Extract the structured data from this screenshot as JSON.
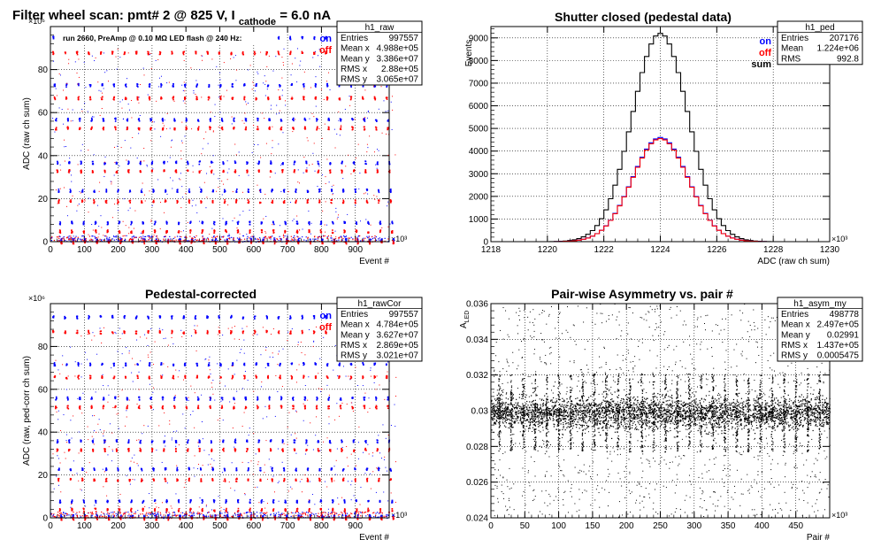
{
  "panels": [
    {
      "id": "raw",
      "title_main": "Filter wheel scan: pmt#   2 @   825 V, I",
      "title_sub": "cathode",
      "title_tail": "= 6.0 nA",
      "run_info": "run 2660, PreAmp @ 0.10 MΩ  LED flash @  240 Hz:",
      "legend": [
        {
          "label": "on",
          "color": "#0000ff"
        },
        {
          "label": "off",
          "color": "#ff0000"
        }
      ],
      "stats": {
        "name": "h1_raw",
        "rows": [
          {
            "label": "Entries",
            "value": "997557"
          },
          {
            "label": "Mean x",
            "value": "4.988e+05"
          },
          {
            "label": "Mean y",
            "value": "3.386e+07"
          },
          {
            "label": "RMS x",
            "value": "2.88e+05"
          },
          {
            "label": "RMS y",
            "value": "3.065e+07"
          }
        ]
      }
    },
    {
      "id": "ped",
      "title_main": "Shutter closed (pedestal data)",
      "legend": [
        {
          "label": "on",
          "color": "#0000ff"
        },
        {
          "label": "off",
          "color": "#ff0000"
        },
        {
          "label": "sum",
          "color": "#000000"
        }
      ],
      "stats": {
        "name": "h1_ped",
        "rows": [
          {
            "label": "Entries",
            "value": "207176"
          },
          {
            "label": "Mean",
            "value": "1.224e+06"
          },
          {
            "label": "RMS",
            "value": "992.8"
          }
        ]
      }
    },
    {
      "id": "cor",
      "title_main": "Pedestal-corrected",
      "legend": [
        {
          "label": "on",
          "color": "#0000ff"
        },
        {
          "label": "off",
          "color": "#ff0000"
        }
      ],
      "stats": {
        "name": "h1_rawCor",
        "rows": [
          {
            "label": "Entries",
            "value": "997557"
          },
          {
            "label": "Mean x",
            "value": "4.784e+05"
          },
          {
            "label": "Mean y",
            "value": "3.627e+07"
          },
          {
            "label": "RMS x",
            "value": "2.869e+05"
          },
          {
            "label": "RMS y",
            "value": "3.021e+07"
          }
        ]
      }
    },
    {
      "id": "asym",
      "title_main": "Pair-wise Asymmetry vs. pair #",
      "stats": {
        "name": "h1_asym_my",
        "rows": [
          {
            "label": "Entries",
            "value": "498778"
          },
          {
            "label": "Mean x",
            "value": "2.497e+05"
          },
          {
            "label": "Mean y",
            "value": "0.02991"
          },
          {
            "label": "RMS x",
            "value": "1.437e+05"
          },
          {
            "label": "RMS y",
            "value": "0.0005475"
          }
        ]
      }
    }
  ],
  "chart_data": [
    {
      "type": "scatter",
      "title": "Filter wheel scan: pmt#   2 @   825 V, I cathode = 6.0 nA",
      "xlabel": "Event #",
      "ylabel": "ADC (raw ch sum)",
      "x_exponent": "×10³",
      "y_exponent": "×10⁶",
      "xlim": [
        0,
        1000
      ],
      "ylim": [
        0,
        100
      ],
      "x_ticks": [
        0,
        100,
        200,
        300,
        400,
        500,
        600,
        700,
        800,
        900
      ],
      "y_ticks": [
        0,
        20,
        40,
        60,
        80
      ],
      "grid": true,
      "series": [
        {
          "name": "on",
          "color": "#0000ff",
          "levels": [
            95,
            73,
            57,
            37,
            24,
            9,
            1
          ]
        },
        {
          "name": "off",
          "color": "#ff0000",
          "levels": [
            88,
            67,
            53,
            33,
            19,
            5,
            0
          ]
        }
      ],
      "step_period": 35
    },
    {
      "type": "line",
      "title": "Shutter closed (pedestal data)",
      "xlabel": "ADC (raw ch sum)",
      "ylabel": "Events",
      "x_exponent": "×10³",
      "xlim": [
        1218,
        1230
      ],
      "ylim": [
        0,
        9500
      ],
      "x_ticks": [
        1218,
        1220,
        1222,
        1224,
        1226,
        1228,
        1230
      ],
      "y_ticks": [
        0,
        1000,
        2000,
        3000,
        4000,
        5000,
        6000,
        7000,
        8000,
        9000
      ],
      "grid": true,
      "series": [
        {
          "name": "sum",
          "color": "#000000",
          "mean": 1224.0,
          "sigma": 0.99,
          "peak": 9200
        },
        {
          "name": "on",
          "color": "#0000ff",
          "mean": 1224.0,
          "sigma": 0.99,
          "peak": 4600
        },
        {
          "name": "off",
          "color": "#ff0000",
          "mean": 1224.0,
          "sigma": 0.99,
          "peak": 4550
        }
      ]
    },
    {
      "type": "scatter",
      "title": "Pedestal-corrected",
      "xlabel": "Event #",
      "ylabel": "ADC (raw, ped-corr ch sum)",
      "x_exponent": "×10³",
      "y_exponent": "×10⁶",
      "xlim": [
        0,
        1000
      ],
      "ylim": [
        0,
        100
      ],
      "x_ticks": [
        0,
        100,
        200,
        300,
        400,
        500,
        600,
        700,
        800,
        900
      ],
      "y_ticks": [
        0,
        20,
        40,
        60,
        80
      ],
      "grid": true,
      "series": [
        {
          "name": "on",
          "color": "#0000ff",
          "levels": [
            94,
            72,
            56,
            36,
            23,
            8,
            1
          ]
        },
        {
          "name": "off",
          "color": "#ff0000",
          "levels": [
            87,
            66,
            52,
            32,
            18,
            4,
            0
          ]
        }
      ],
      "step_period": 35
    },
    {
      "type": "scatter",
      "title": "Pair-wise Asymmetry vs. pair #",
      "xlabel": "Pair #",
      "ylabel": "A_LED",
      "x_exponent": "×10³",
      "xlim": [
        0,
        500
      ],
      "ylim": [
        0.024,
        0.036
      ],
      "x_ticks": [
        0,
        50,
        100,
        150,
        200,
        250,
        300,
        350,
        400,
        450
      ],
      "y_ticks": [
        0.024,
        0.026,
        0.028,
        0.03,
        0.032,
        0.034,
        0.036
      ],
      "grid": true,
      "series": [
        {
          "name": "asymmetry",
          "color": "#000000",
          "center": 0.0299,
          "width": 0.0006
        }
      ],
      "spike_period": 17.5
    }
  ]
}
